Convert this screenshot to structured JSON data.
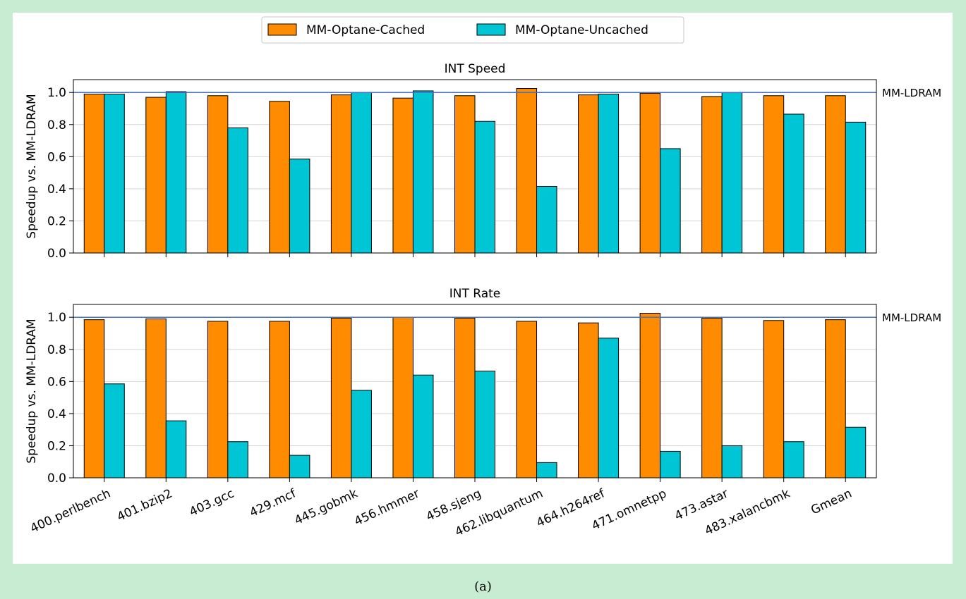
{
  "caption": "(a)",
  "legend": [
    {
      "name": "MM-Optane-Cached",
      "color": "#ff8c00"
    },
    {
      "name": "MM-Optane-Uncached",
      "color": "#00c5d5"
    }
  ],
  "chart_data": [
    {
      "type": "bar",
      "title": "INT Speed",
      "ylabel": "Speedup vs. MM-LDRAM",
      "ylim": [
        0,
        1.08
      ],
      "yticks": [
        "0.0",
        "0.2",
        "0.4",
        "0.6",
        "0.8",
        "1.0"
      ],
      "grid": "horizontal",
      "reference_line": {
        "value": 1.0,
        "label": "MM-LDRAM",
        "color": "#4472c4"
      },
      "categories": [
        "400.perlbench",
        "401.bzip2",
        "403.gcc",
        "429.mcf",
        "445.gobmk",
        "456.hmmer",
        "458.sjeng",
        "462.libquantum",
        "464.h264ref",
        "471.omnetpp",
        "473.astar",
        "483.xalancbmk",
        "Gmean"
      ],
      "series": [
        {
          "name": "MM-Optane-Cached",
          "values": [
            0.99,
            0.97,
            0.98,
            0.945,
            0.985,
            0.965,
            0.98,
            1.025,
            0.985,
            0.995,
            0.975,
            0.98,
            0.98
          ]
        },
        {
          "name": "MM-Optane-Uncached",
          "values": [
            0.99,
            1.005,
            0.78,
            0.585,
            1.0,
            1.01,
            0.82,
            0.415,
            0.99,
            0.65,
            1.0,
            0.865,
            0.815
          ]
        }
      ]
    },
    {
      "type": "bar",
      "title": "INT Rate",
      "ylabel": "Speedup vs. MM-LDRAM",
      "ylim": [
        0,
        1.08
      ],
      "yticks": [
        "0.0",
        "0.2",
        "0.4",
        "0.6",
        "0.8",
        "1.0"
      ],
      "grid": "horizontal",
      "reference_line": {
        "value": 1.0,
        "label": "MM-LDRAM",
        "color": "#4472c4"
      },
      "categories": [
        "400.perlbench",
        "401.bzip2",
        "403.gcc",
        "429.mcf",
        "445.gobmk",
        "456.hmmer",
        "458.sjeng",
        "462.libquantum",
        "464.h264ref",
        "471.omnetpp",
        "473.astar",
        "483.xalancbmk",
        "Gmean"
      ],
      "series": [
        {
          "name": "MM-Optane-Cached",
          "values": [
            0.985,
            0.99,
            0.975,
            0.975,
            0.995,
            1.0,
            0.995,
            0.975,
            0.965,
            1.025,
            0.995,
            0.98,
            0.985
          ]
        },
        {
          "name": "MM-Optane-Uncached",
          "values": [
            0.585,
            0.355,
            0.225,
            0.14,
            0.545,
            0.64,
            0.665,
            0.095,
            0.87,
            0.165,
            0.2,
            0.225,
            0.315
          ]
        }
      ]
    }
  ]
}
